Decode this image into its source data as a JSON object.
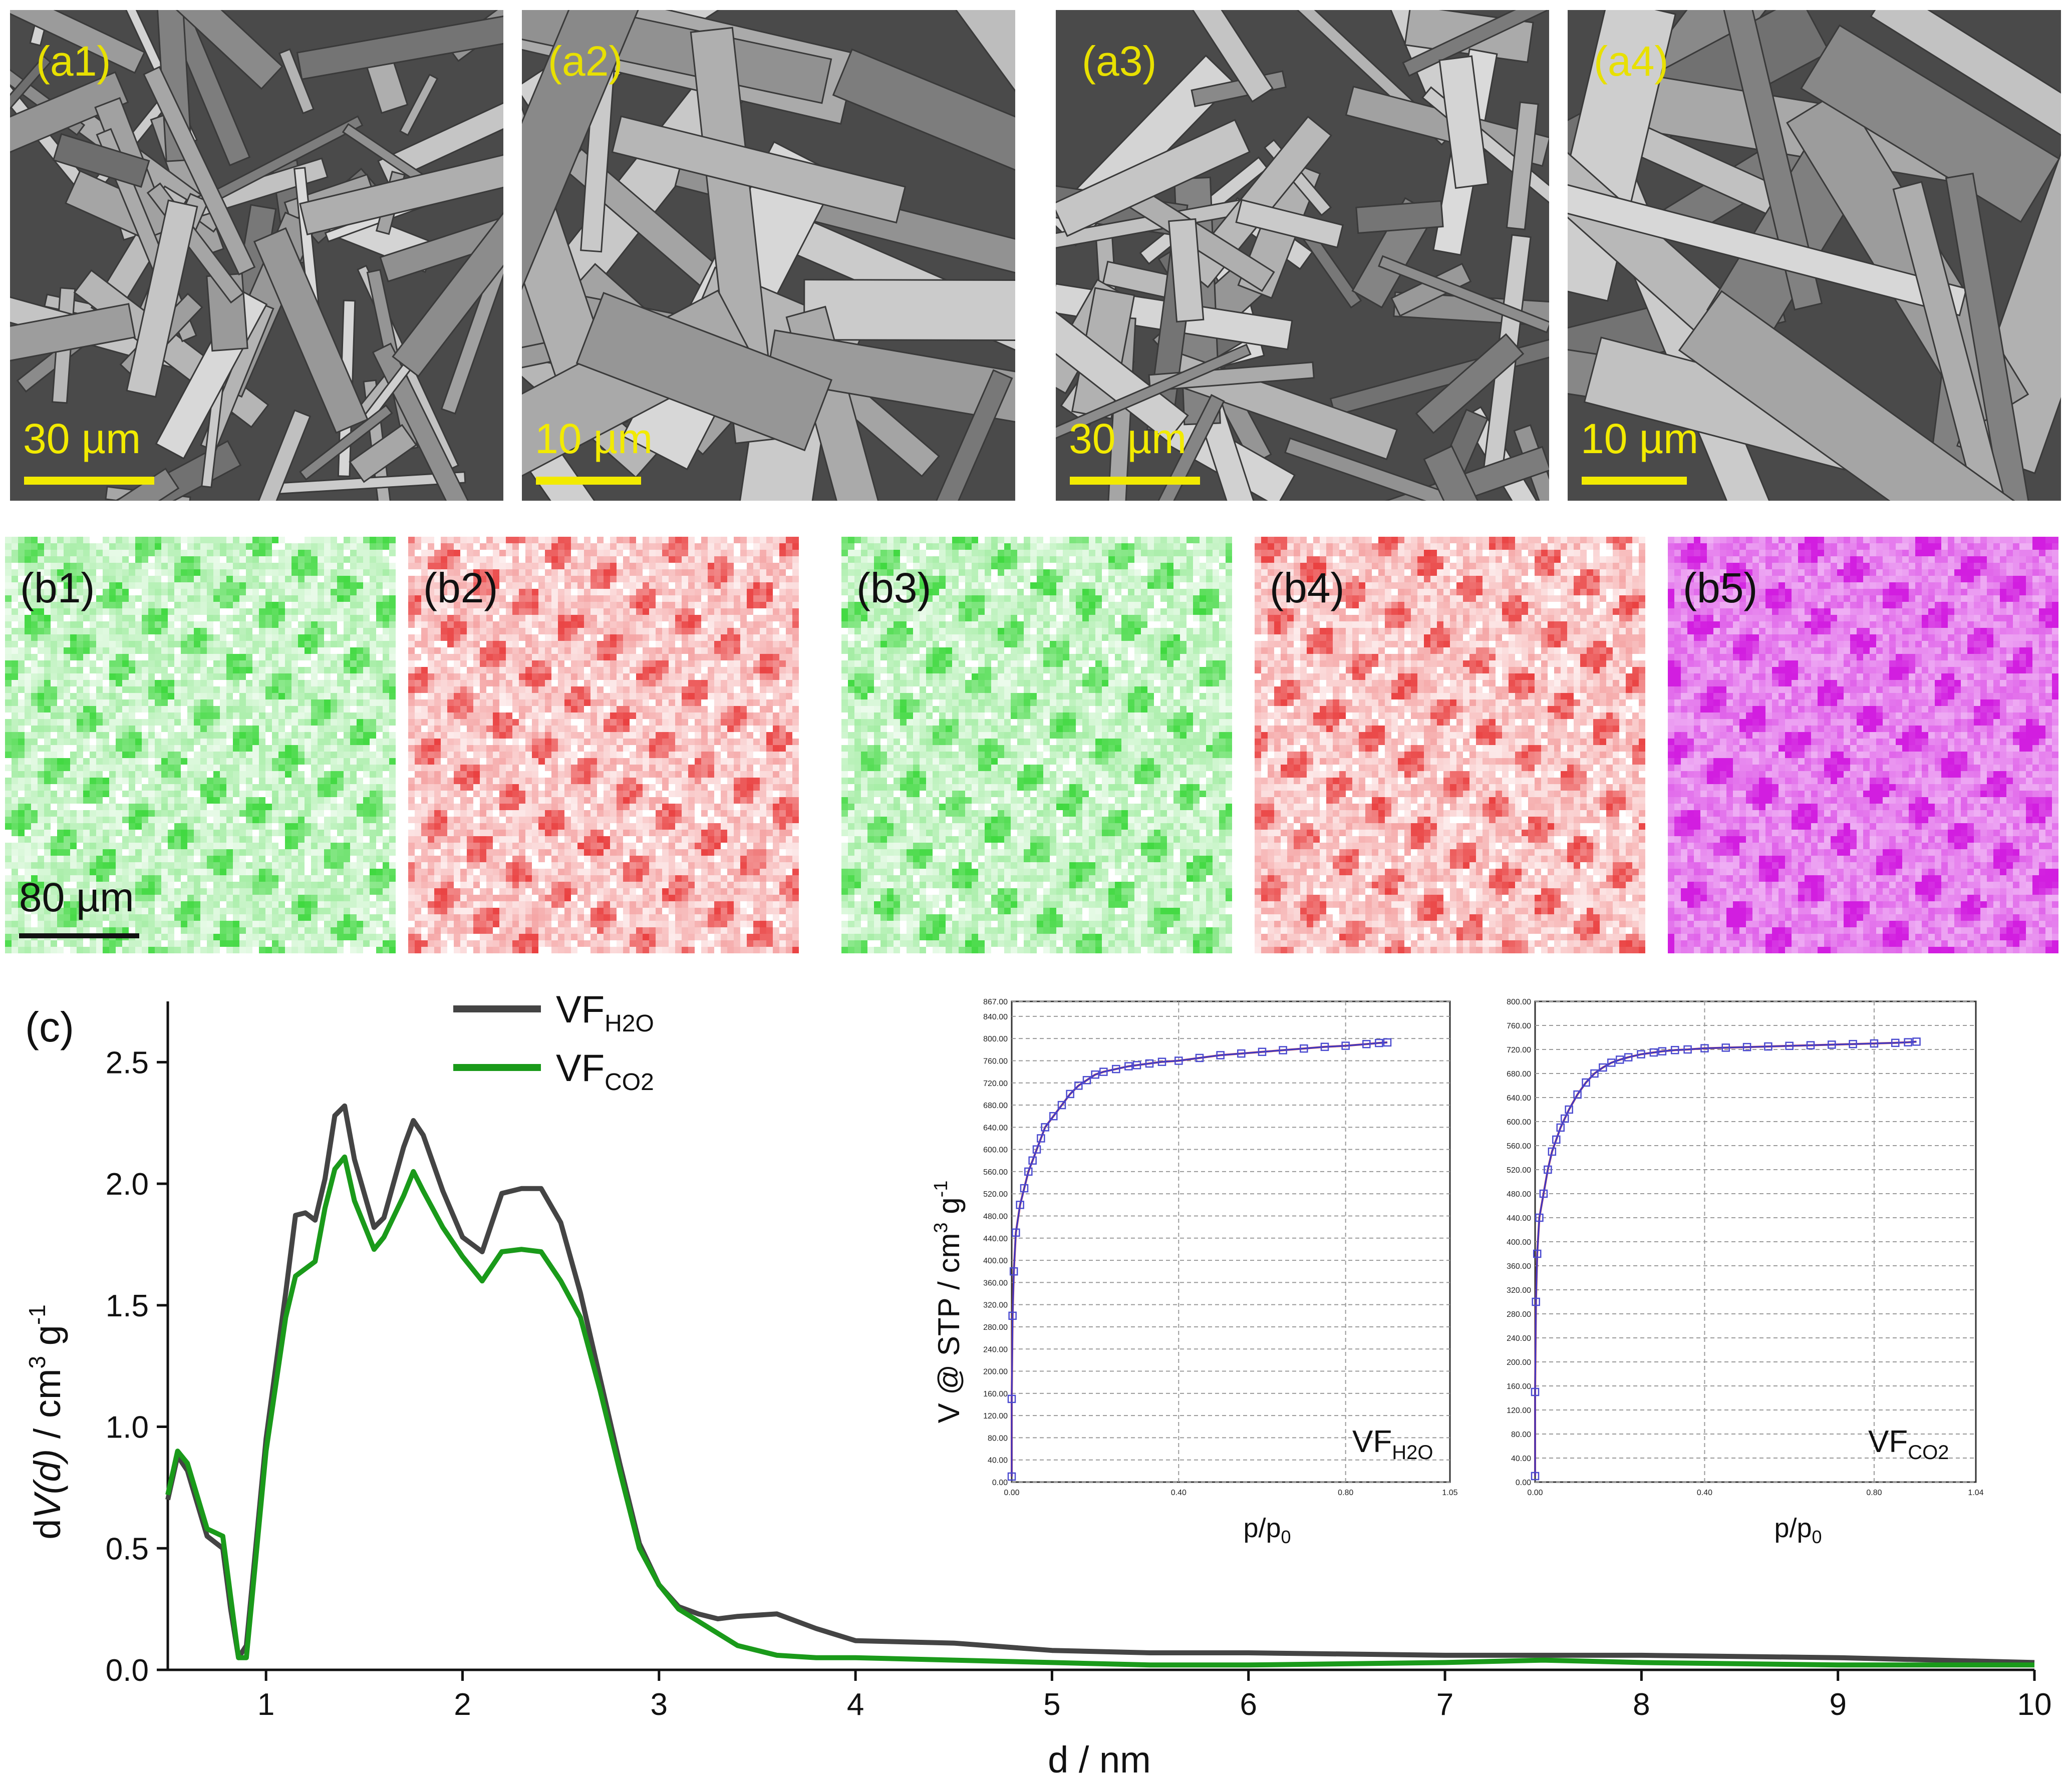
{
  "sem_panels": [
    {
      "label": "(a1)",
      "scale": "30 µm"
    },
    {
      "label": "(a2)",
      "scale": "10 µm"
    },
    {
      "label": "(a3)",
      "scale": "30 µm"
    },
    {
      "label": "(a4)",
      "scale": "10 µm"
    }
  ],
  "eds_maps": [
    {
      "label": "(b1)",
      "color": "#1ed21e",
      "scale": "80 µm"
    },
    {
      "label": "(b2)",
      "color": "#e62020"
    },
    {
      "label": "(b3)",
      "color": "#1ed21e"
    },
    {
      "label": "(b4)",
      "color": "#e62020"
    },
    {
      "label": "(b5)",
      "color": "#d21ee0"
    }
  ],
  "panel_c_label": "(c)",
  "chart_data": [
    {
      "type": "line",
      "xlabel": "d / nm",
      "ylabel_parts": [
        "d",
        "V(d)",
        " / cm",
        "3",
        " g",
        "-1"
      ],
      "xlim": [
        0.5,
        10
      ],
      "ylim": [
        0,
        2.75
      ],
      "xticks": [
        1,
        2,
        3,
        4,
        5,
        6,
        7,
        8,
        9,
        10
      ],
      "yticks": [
        "0.0",
        "0.5",
        "1.0",
        "1.5",
        "2.0",
        "2.5"
      ],
      "legend": "top-left",
      "series": [
        {
          "name_main": "VF",
          "name_sub": "H2O",
          "color": "#444444",
          "x": [
            0.5,
            0.55,
            0.6,
            0.7,
            0.78,
            0.82,
            0.86,
            0.9,
            1.0,
            1.1,
            1.15,
            1.2,
            1.25,
            1.3,
            1.35,
            1.4,
            1.45,
            1.55,
            1.6,
            1.7,
            1.75,
            1.8,
            1.9,
            2.0,
            2.1,
            2.2,
            2.3,
            2.4,
            2.5,
            2.6,
            2.7,
            2.8,
            2.9,
            3.0,
            3.1,
            3.2,
            3.3,
            3.4,
            3.6,
            3.8,
            4.0,
            4.5,
            5.0,
            5.5,
            6.0,
            7.0,
            8.0,
            9.0,
            10.0
          ],
          "y": [
            0.7,
            0.88,
            0.82,
            0.55,
            0.5,
            0.25,
            0.05,
            0.1,
            0.95,
            1.55,
            1.87,
            1.88,
            1.85,
            2.02,
            2.28,
            2.32,
            2.1,
            1.82,
            1.86,
            2.15,
            2.26,
            2.2,
            1.97,
            1.78,
            1.72,
            1.96,
            1.98,
            1.98,
            1.84,
            1.55,
            1.2,
            0.85,
            0.52,
            0.35,
            0.26,
            0.23,
            0.21,
            0.22,
            0.23,
            0.17,
            0.12,
            0.11,
            0.08,
            0.07,
            0.07,
            0.06,
            0.06,
            0.05,
            0.03
          ]
        },
        {
          "name_main": "VF",
          "name_sub": "CO2",
          "color": "#1a9a1a",
          "x": [
            0.5,
            0.55,
            0.6,
            0.7,
            0.78,
            0.82,
            0.86,
            0.9,
            1.0,
            1.1,
            1.15,
            1.2,
            1.25,
            1.3,
            1.35,
            1.4,
            1.45,
            1.55,
            1.6,
            1.7,
            1.75,
            1.8,
            1.9,
            2.0,
            2.1,
            2.2,
            2.3,
            2.4,
            2.5,
            2.6,
            2.7,
            2.8,
            2.9,
            3.0,
            3.1,
            3.2,
            3.3,
            3.4,
            3.6,
            3.8,
            4.0,
            4.5,
            5.0,
            5.5,
            6.0,
            7.0,
            7.5,
            8.0,
            9.0,
            10.0
          ],
          "y": [
            0.72,
            0.9,
            0.85,
            0.58,
            0.55,
            0.3,
            0.05,
            0.05,
            0.9,
            1.45,
            1.62,
            1.65,
            1.68,
            1.9,
            2.06,
            2.11,
            1.93,
            1.73,
            1.78,
            1.95,
            2.05,
            1.97,
            1.82,
            1.7,
            1.6,
            1.72,
            1.73,
            1.72,
            1.6,
            1.45,
            1.15,
            0.82,
            0.5,
            0.35,
            0.25,
            0.2,
            0.15,
            0.1,
            0.06,
            0.05,
            0.05,
            0.04,
            0.03,
            0.02,
            0.02,
            0.03,
            0.04,
            0.03,
            0.02,
            0.02
          ]
        }
      ]
    },
    {
      "type": "scatter",
      "ylabel_parts": [
        "V @ STP / cm",
        "3",
        " g",
        "-1"
      ],
      "xlabel_parts": [
        "p/p",
        "0"
      ],
      "tag_main": "VF",
      "tag_sub": "H2O",
      "xlim": [
        0,
        1.05
      ],
      "ylim": [
        0,
        867
      ],
      "xticks": [
        "0.00",
        "0.40",
        "0.80",
        "1.05"
      ],
      "xtick_values": [
        0,
        0.4,
        0.8,
        1.05
      ],
      "yticks": [
        "0.00",
        "40.00",
        "80.00",
        "120.00",
        "160.00",
        "200.00",
        "240.00",
        "280.00",
        "320.00",
        "360.00",
        "400.00",
        "440.00",
        "480.00",
        "520.00",
        "560.00",
        "600.00",
        "640.00",
        "680.00",
        "720.00",
        "760.00",
        "800.00",
        "840.00",
        "867.00"
      ],
      "ytick_values": [
        0,
        40,
        80,
        120,
        160,
        200,
        240,
        280,
        320,
        360,
        400,
        440,
        480,
        520,
        560,
        600,
        640,
        680,
        720,
        760,
        800,
        840,
        867
      ],
      "x": [
        0.0,
        0.0,
        0.002,
        0.005,
        0.01,
        0.02,
        0.03,
        0.04,
        0.05,
        0.06,
        0.07,
        0.08,
        0.1,
        0.12,
        0.14,
        0.16,
        0.18,
        0.2,
        0.22,
        0.25,
        0.28,
        0.3,
        0.33,
        0.36,
        0.4,
        0.45,
        0.5,
        0.55,
        0.6,
        0.65,
        0.7,
        0.75,
        0.8,
        0.85,
        0.88,
        0.9
      ],
      "y": [
        10,
        150,
        300,
        380,
        450,
        500,
        530,
        560,
        580,
        600,
        620,
        640,
        660,
        680,
        700,
        715,
        725,
        735,
        740,
        745,
        750,
        752,
        755,
        758,
        760,
        765,
        770,
        773,
        776,
        779,
        782,
        785,
        787,
        790,
        792,
        793
      ]
    },
    {
      "type": "scatter",
      "xlabel_parts": [
        "p/p",
        "0"
      ],
      "tag_main": "VF",
      "tag_sub": "CO2",
      "xlim": [
        0,
        1.04
      ],
      "ylim": [
        0,
        800
      ],
      "xticks": [
        "0.00",
        "0.40",
        "0.80",
        "1.04"
      ],
      "xtick_values": [
        0,
        0.4,
        0.8,
        1.04
      ],
      "yticks": [
        "0.00",
        "40.00",
        "80.00",
        "120.00",
        "160.00",
        "200.00",
        "240.00",
        "280.00",
        "320.00",
        "360.00",
        "400.00",
        "440.00",
        "480.00",
        "520.00",
        "560.00",
        "600.00",
        "640.00",
        "680.00",
        "720.00",
        "760.00",
        "800.00"
      ],
      "ytick_values": [
        0,
        40,
        80,
        120,
        160,
        200,
        240,
        280,
        320,
        360,
        400,
        440,
        480,
        520,
        560,
        600,
        640,
        680,
        720,
        760,
        800
      ],
      "x": [
        0.0,
        0.0,
        0.002,
        0.005,
        0.01,
        0.02,
        0.03,
        0.04,
        0.05,
        0.06,
        0.07,
        0.08,
        0.1,
        0.12,
        0.14,
        0.16,
        0.18,
        0.2,
        0.22,
        0.25,
        0.28,
        0.3,
        0.33,
        0.36,
        0.4,
        0.45,
        0.5,
        0.55,
        0.6,
        0.65,
        0.7,
        0.75,
        0.8,
        0.85,
        0.88,
        0.9
      ],
      "y": [
        10,
        150,
        300,
        380,
        440,
        480,
        520,
        550,
        570,
        590,
        605,
        620,
        645,
        665,
        680,
        690,
        698,
        703,
        707,
        712,
        715,
        717,
        719,
        720,
        722,
        723,
        724,
        725,
        726,
        727,
        728,
        729,
        730,
        731,
        732,
        733
      ]
    }
  ]
}
